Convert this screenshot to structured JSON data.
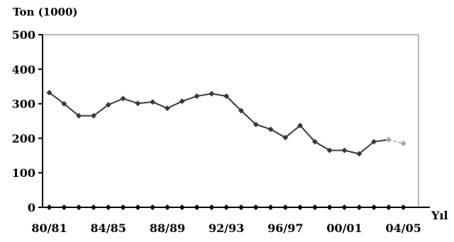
{
  "chart_data": {
    "type": "line",
    "ylabel": "Ton (1000)",
    "xlabel": "Yıl",
    "ylim": [
      0,
      500
    ],
    "yticks": [
      0,
      100,
      200,
      300,
      400,
      500
    ],
    "xtick_labels": [
      "80/81",
      "84/85",
      "88/89",
      "92/93",
      "96/97",
      "00/01",
      "04/05"
    ],
    "grid": false,
    "series": [
      {
        "color": "#3a3a3a",
        "marker_color": "#3a3a3a",
        "x": [
          "80/81",
          "81/82",
          "82/83",
          "83/84",
          "84/85",
          "85/86",
          "86/87",
          "87/88",
          "88/89",
          "89/90",
          "90/91",
          "91/92",
          "92/93",
          "93/94",
          "94/95",
          "95/96",
          "96/97",
          "97/98",
          "98/99",
          "99/00",
          "00/01",
          "01/02",
          "02/03",
          "03/04"
        ],
        "values": [
          332,
          300,
          265,
          265,
          297,
          315,
          301,
          305,
          287,
          307,
          322,
          329,
          322,
          280,
          240,
          226,
          202,
          237,
          190,
          165,
          165,
          155,
          190,
          196
        ]
      },
      {
        "color": "#b8b8b8",
        "marker_color": "#a8a8a8",
        "dashed": true,
        "x": [
          "03/04",
          "04/05"
        ],
        "values": [
          196,
          185
        ]
      }
    ]
  }
}
